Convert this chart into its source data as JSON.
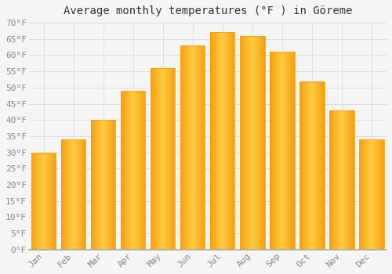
{
  "title": "Average monthly temperatures (°F ) in Göreme",
  "months": [
    "Jan",
    "Feb",
    "Mar",
    "Apr",
    "May",
    "Jun",
    "Jul",
    "Aug",
    "Sep",
    "Oct",
    "Nov",
    "Dec"
  ],
  "values": [
    30,
    34,
    40,
    49,
    56,
    63,
    67,
    66,
    61,
    52,
    43,
    34
  ],
  "bar_color_center": "#FFCC44",
  "bar_color_edge": "#F5A010",
  "background_color": "#f5f5f5",
  "plot_bg_color": "#f5f5f5",
  "grid_color": "#dddddd",
  "ylim": [
    0,
    70
  ],
  "ytick_step": 5,
  "title_fontsize": 10,
  "tick_fontsize": 8,
  "font_family": "monospace",
  "bar_width": 0.82
}
